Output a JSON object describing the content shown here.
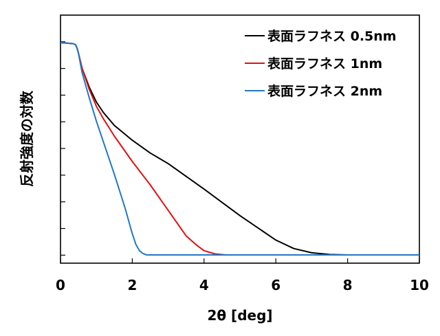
{
  "chart_data": {
    "type": "line",
    "title": "",
    "xlabel": "2θ [deg]",
    "ylabel": "反射強度の対数",
    "xlim": [
      0,
      10
    ],
    "ylim": [
      0,
      1
    ],
    "y_scale": "log (no tick labels)",
    "x_ticks": [
      "0",
      "2",
      "4",
      "6",
      "8",
      "10"
    ],
    "grid": false,
    "legend_position": "top-right",
    "series": [
      {
        "name": "表面ラフネス 0.5nm",
        "color": "#000000",
        "x": [
          0,
          0.35,
          0.42,
          0.46,
          0.5,
          0.6,
          0.8,
          1.0,
          1.2,
          1.5,
          2.0,
          2.5,
          3.0,
          4.0,
          5.0,
          6.0,
          6.5,
          7.0,
          7.5,
          8.0,
          8.5,
          10.0
        ],
        "y": [
          1.0,
          0.995,
          0.99,
          0.975,
          0.95,
          0.88,
          0.79,
          0.72,
          0.67,
          0.61,
          0.54,
          0.48,
          0.43,
          0.31,
          0.185,
          0.07,
          0.03,
          0.01,
          0.002,
          0.0,
          0.0,
          0.0
        ]
      },
      {
        "name": "表面ラフネス 1nm",
        "color": "#e01010",
        "x": [
          0,
          0.35,
          0.42,
          0.46,
          0.5,
          0.6,
          0.8,
          1.0,
          1.2,
          1.5,
          2.0,
          2.5,
          3.0,
          3.5,
          3.8,
          4.0,
          4.3,
          4.6,
          5.0,
          10.0
        ],
        "y": [
          1.0,
          0.995,
          0.99,
          0.975,
          0.95,
          0.88,
          0.78,
          0.7,
          0.64,
          0.56,
          0.44,
          0.33,
          0.21,
          0.09,
          0.045,
          0.02,
          0.005,
          0.0,
          0.0,
          0.0
        ]
      },
      {
        "name": "表面ラフネス 2nm",
        "color": "#1f77c8",
        "x": [
          0,
          0.35,
          0.42,
          0.46,
          0.5,
          0.6,
          0.8,
          1.0,
          1.2,
          1.5,
          1.8,
          2.0,
          2.1,
          2.2,
          2.3,
          2.4,
          2.6,
          3.0,
          10.0
        ],
        "y": [
          1.0,
          0.995,
          0.99,
          0.975,
          0.95,
          0.86,
          0.74,
          0.63,
          0.53,
          0.38,
          0.22,
          0.1,
          0.05,
          0.02,
          0.006,
          0.0,
          0.0,
          0.0,
          0.0
        ]
      }
    ]
  }
}
